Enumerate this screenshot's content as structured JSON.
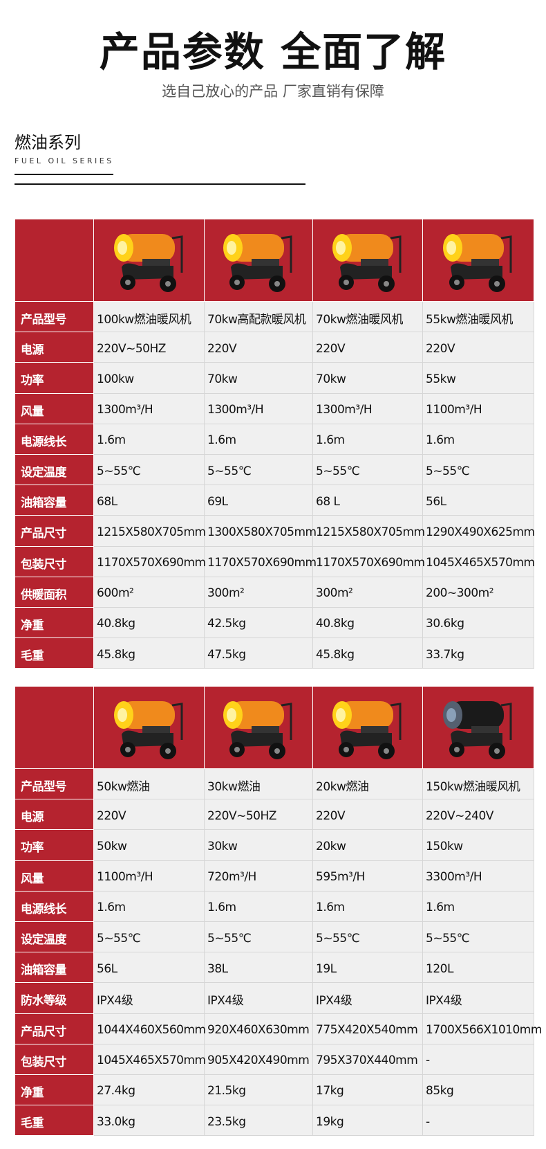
{
  "header": {
    "title": "产品参数 全面了解",
    "subtitle": "选自己放心的产品 厂家直销有保障"
  },
  "section": {
    "title": "燃油系列",
    "subtitle": "FUEL OIL SERIES"
  },
  "colors": {
    "label_bg": "#b5232f",
    "cell_bg": "#f0f0f0",
    "heater_body": "#f08a1c"
  },
  "table1": {
    "rows": [
      {
        "label": "产品型号",
        "values": [
          "100kw燃油暖风机",
          "70kw高配款暖风机",
          "70kw燃油暖风机",
          "55kw燃油暖风机"
        ]
      },
      {
        "label": "电源",
        "values": [
          "220V~50HZ",
          "220V",
          "220V",
          "220V"
        ]
      },
      {
        "label": "功率",
        "values": [
          "100kw",
          "70kw",
          "70kw",
          "55kw"
        ]
      },
      {
        "label": "风量",
        "values": [
          "1300m³/H",
          "1300m³/H",
          "1300m³/H",
          "1100m³/H"
        ]
      },
      {
        "label": "电源线长",
        "values": [
          "1.6m",
          "1.6m",
          "1.6m",
          "1.6m"
        ]
      },
      {
        "label": "设定温度",
        "values": [
          "5~55℃",
          "5~55℃",
          "5~55℃",
          "5~55℃"
        ]
      },
      {
        "label": "油箱容量",
        "values": [
          "68L",
          "69L",
          "68 L",
          "56L"
        ]
      },
      {
        "label": "产品尺寸",
        "values": [
          "1215X580X705mm",
          "1300X580X705mm",
          "1215X580X705mm",
          "1290X490X625mm"
        ]
      },
      {
        "label": "包装尺寸",
        "values": [
          "1170X570X690mm",
          "1170X570X690mm",
          "1170X570X690mm",
          "1045X465X570mm"
        ]
      },
      {
        "label": "供暖面积",
        "values": [
          "600m²",
          "300m²",
          "300m²",
          "200~300m²"
        ]
      },
      {
        "label": "净重",
        "values": [
          "40.8kg",
          "42.5kg",
          "40.8kg",
          "30.6kg"
        ]
      },
      {
        "label": "毛重",
        "values": [
          "45.8kg",
          "47.5kg",
          "45.8kg",
          "33.7kg"
        ]
      }
    ]
  },
  "table2": {
    "rows": [
      {
        "label": "产品型号",
        "values": [
          "50kw燃油",
          "30kw燃油",
          "20kw燃油",
          "150kw燃油暖风机"
        ]
      },
      {
        "label": "电源",
        "values": [
          "220V",
          "220V~50HZ",
          "220V",
          "220V~240V"
        ]
      },
      {
        "label": "功率",
        "values": [
          "50kw",
          "30kw",
          "20kw",
          "150kw"
        ]
      },
      {
        "label": "风量",
        "values": [
          "1100m³/H",
          "720m³/H",
          "595m³/H",
          "3300m³/H"
        ]
      },
      {
        "label": "电源线长",
        "values": [
          "1.6m",
          "1.6m",
          "1.6m",
          "1.6m"
        ]
      },
      {
        "label": "设定温度",
        "values": [
          "5~55℃",
          "5~55℃",
          "5~55℃",
          "5~55℃"
        ]
      },
      {
        "label": "油箱容量",
        "values": [
          "56L",
          "38L",
          "19L",
          "120L"
        ]
      },
      {
        "label": "防水等级",
        "values": [
          "IPX4级",
          "IPX4级",
          "IPX4级",
          "IPX4级"
        ]
      },
      {
        "label": "产品尺寸",
        "values": [
          "1044X460X560mm",
          "920X460X630mm",
          "775X420X540mm",
          "1700X566X1010mm"
        ]
      },
      {
        "label": "包装尺寸",
        "values": [
          "1045X465X570mm",
          "905X420X490mm",
          "795X370X440mm",
          "-"
        ]
      },
      {
        "label": "净重",
        "values": [
          "27.4kg",
          "21.5kg",
          "17kg",
          "85kg"
        ]
      },
      {
        "label": "毛重",
        "values": [
          "33.0kg",
          "23.5kg",
          "19kg",
          "-"
        ]
      }
    ]
  }
}
